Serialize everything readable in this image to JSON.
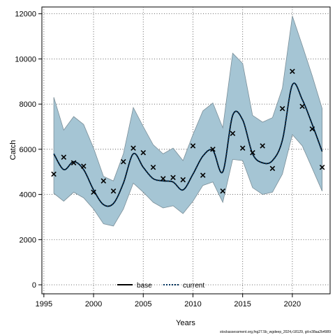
{
  "chart_data": {
    "type": "line",
    "xlabel": "Years",
    "ylabel": "Catch",
    "xlim": [
      1994.8,
      2023.8
    ],
    "ylim": [
      -400,
      12300
    ],
    "xticks": [
      1995,
      2000,
      2005,
      2010,
      2015,
      2020
    ],
    "yticks": [
      0,
      2000,
      4000,
      6000,
      8000,
      10000,
      12000
    ],
    "grid": true,
    "legend_position": "bottom-center",
    "x": [
      1996,
      1997,
      1998,
      1999,
      2000,
      2001,
      2002,
      2003,
      2004,
      2005,
      2006,
      2007,
      2008,
      2009,
      2010,
      2011,
      2012,
      2013,
      2014,
      2015,
      2016,
      2017,
      2018,
      2019,
      2020,
      2021,
      2022,
      2023
    ],
    "observed": [
      4900,
      5650,
      5400,
      5250,
      4100,
      4600,
      4150,
      5450,
      6050,
      5850,
      5200,
      4700,
      4750,
      4650,
      6150,
      4850,
      6000,
      4150,
      6700,
      6050,
      5850,
      6150,
      5150,
      7800,
      9450,
      7900,
      6900,
      5200
    ],
    "base": [
      5800,
      5100,
      5450,
      5100,
      4200,
      3550,
      3600,
      4500,
      5800,
      5200,
      4700,
      4600,
      4550,
      4200,
      4900,
      5700,
      5950,
      5000,
      7500,
      7300,
      5800,
      5400,
      5500,
      6400,
      8850,
      8200,
      7100,
      5900
    ],
    "current": [
      5800,
      5100,
      5450,
      5100,
      4200,
      3550,
      3600,
      4500,
      5800,
      5200,
      4700,
      4600,
      4550,
      4200,
      4900,
      5700,
      5950,
      5000,
      7500,
      7300,
      5800,
      5400,
      5500,
      6400,
      8850,
      8200,
      7100,
      5900
    ],
    "upper": [
      8300,
      6850,
      7450,
      7100,
      6050,
      4800,
      4600,
      5800,
      7850,
      7000,
      6200,
      5800,
      6050,
      5500,
      6650,
      7700,
      8050,
      6950,
      10250,
      9800,
      7500,
      7200,
      7400,
      8700,
      11900,
      10600,
      9250,
      7800
    ],
    "lower": [
      4050,
      3700,
      4100,
      3850,
      3350,
      2700,
      2600,
      3350,
      4500,
      4100,
      3650,
      3400,
      3500,
      3150,
      3700,
      4400,
      4550,
      3650,
      5550,
      5500,
      4300,
      4000,
      4100,
      4900,
      6650,
      6150,
      5150,
      4150
    ],
    "series": [
      {
        "name": "base",
        "color": "#000000",
        "style": "solid"
      },
      {
        "name": "current",
        "color": "#00335e",
        "style": "dotted"
      }
    ],
    "band_color": "#a5c5d4",
    "marker": "×"
  },
  "footnote": "stockassessment.org,fng27.5b_wgdeep_2024,r18129, git:e38aa2b4989"
}
